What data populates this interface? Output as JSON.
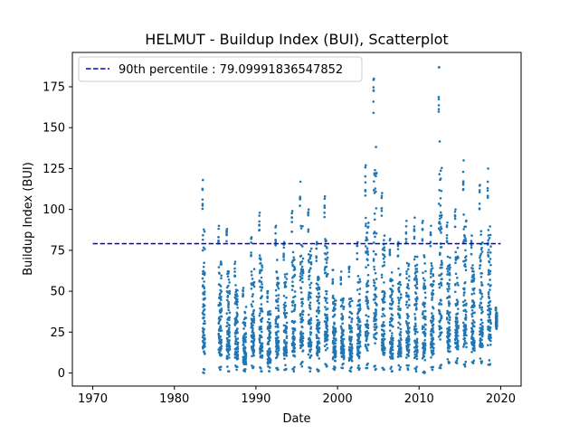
{
  "chart_data": {
    "type": "scatter",
    "title": "HELMUT - Buildup Index (BUI), Scatterplot",
    "xlabel": "Date",
    "ylabel": "Buildup Index (BUI)",
    "xlim": [
      1967.5,
      2022.5
    ],
    "ylim": [
      -8,
      196
    ],
    "xticks": [
      1970,
      1980,
      1990,
      2000,
      2010,
      2020
    ],
    "yticks": [
      0,
      25,
      50,
      75,
      100,
      125,
      150,
      175
    ],
    "grid": false,
    "legend_position": "top-left",
    "point_color": "#1f77b4",
    "percentile_line": {
      "label": "90th percentile : 79.09991836547852",
      "value": 79.09991836547852,
      "x_start": 1970,
      "x_end": 2020,
      "color": "#0000cc"
    },
    "seasons": [
      {
        "year": 1983,
        "start": 1983.45,
        "end": 1983.75,
        "min": 0,
        "max": 118
      },
      {
        "year": 1985,
        "start": 1985.4,
        "end": 1985.8,
        "min": 2,
        "max": 90
      },
      {
        "year": 1986,
        "start": 1986.4,
        "end": 1986.8,
        "min": 1,
        "max": 88
      },
      {
        "year": 1987,
        "start": 1987.4,
        "end": 1987.8,
        "min": 2,
        "max": 68
      },
      {
        "year": 1988,
        "start": 1988.4,
        "end": 1988.8,
        "min": 1,
        "max": 52
      },
      {
        "year": 1989,
        "start": 1989.4,
        "end": 1989.8,
        "min": 3,
        "max": 83
      },
      {
        "year": 1990,
        "start": 1990.4,
        "end": 1990.8,
        "min": 1,
        "max": 98
      },
      {
        "year": 1991,
        "start": 1991.4,
        "end": 1991.8,
        "min": 1,
        "max": 50
      },
      {
        "year": 1992,
        "start": 1992.4,
        "end": 1992.8,
        "min": 2,
        "max": 90
      },
      {
        "year": 1993,
        "start": 1993.4,
        "end": 1993.8,
        "min": 2,
        "max": 80
      },
      {
        "year": 1994,
        "start": 1994.4,
        "end": 1994.8,
        "min": 1,
        "max": 99
      },
      {
        "year": 1995,
        "start": 1995.4,
        "end": 1995.8,
        "min": 4,
        "max": 117
      },
      {
        "year": 1996,
        "start": 1996.4,
        "end": 1996.8,
        "min": 1,
        "max": 100
      },
      {
        "year": 1997,
        "start": 1997.4,
        "end": 1997.8,
        "min": 1,
        "max": 80
      },
      {
        "year": 1998,
        "start": 1998.4,
        "end": 1998.8,
        "min": 4,
        "max": 108
      },
      {
        "year": 1999,
        "start": 1999.4,
        "end": 1999.8,
        "min": 2,
        "max": 63
      },
      {
        "year": 2000,
        "start": 2000.4,
        "end": 2000.8,
        "min": 3,
        "max": 62
      },
      {
        "year": 2001,
        "start": 2001.4,
        "end": 2001.8,
        "min": 1,
        "max": 65
      },
      {
        "year": 2002,
        "start": 2002.4,
        "end": 2002.8,
        "min": 2,
        "max": 80
      },
      {
        "year": 2003,
        "start": 2003.4,
        "end": 2003.8,
        "min": 3,
        "max": 127
      },
      {
        "year": 2004,
        "start": 2004.4,
        "end": 2004.8,
        "min": 2,
        "max": 180
      },
      {
        "year": 2005,
        "start": 2005.4,
        "end": 2005.8,
        "min": 2,
        "max": 110
      },
      {
        "year": 2006,
        "start": 2006.4,
        "end": 2006.8,
        "min": 1,
        "max": 82
      },
      {
        "year": 2007,
        "start": 2007.4,
        "end": 2007.8,
        "min": 2,
        "max": 80
      },
      {
        "year": 2008,
        "start": 2008.4,
        "end": 2008.8,
        "min": 2,
        "max": 93
      },
      {
        "year": 2009,
        "start": 2009.4,
        "end": 2009.8,
        "min": 1,
        "max": 95
      },
      {
        "year": 2010,
        "start": 2010.4,
        "end": 2010.8,
        "min": 0,
        "max": 93
      },
      {
        "year": 2011,
        "start": 2011.4,
        "end": 2011.8,
        "min": 2,
        "max": 90
      },
      {
        "year": 2012,
        "start": 2012.4,
        "end": 2012.8,
        "min": 3,
        "max": 187
      },
      {
        "year": 2013,
        "start": 2013.4,
        "end": 2013.8,
        "min": 6,
        "max": 92
      },
      {
        "year": 2014,
        "start": 2014.4,
        "end": 2014.8,
        "min": 6,
        "max": 100
      },
      {
        "year": 2015,
        "start": 2015.4,
        "end": 2015.8,
        "min": 4,
        "max": 130
      },
      {
        "year": 2016,
        "start": 2016.4,
        "end": 2016.8,
        "min": 6,
        "max": 84
      },
      {
        "year": 2017,
        "start": 2017.4,
        "end": 2017.8,
        "min": 6,
        "max": 115
      },
      {
        "year": 2018,
        "start": 2018.4,
        "end": 2018.8,
        "min": 5,
        "max": 125
      },
      {
        "year": 2019,
        "start": 2019.4,
        "end": 2019.55,
        "min": 27,
        "max": 40
      }
    ]
  }
}
